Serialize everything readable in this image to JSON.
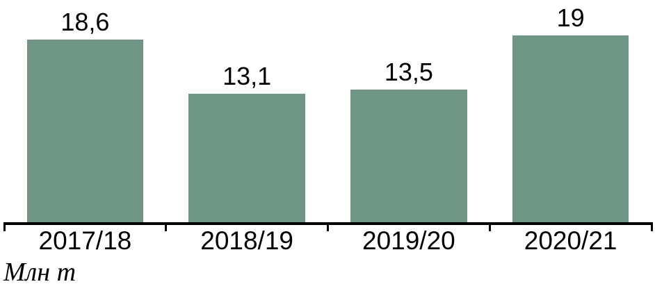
{
  "chart_data": {
    "type": "bar",
    "title": "",
    "xlabel": "",
    "ylabel": "",
    "unit_label": "Млн т",
    "categories": [
      "2017/18",
      "2018/19",
      "2019/20",
      "2020/21"
    ],
    "values": [
      18.6,
      13.1,
      13.5,
      19
    ],
    "value_labels": [
      "18,6",
      "13,1",
      "13,5",
      "19"
    ],
    "ylim": [
      0,
      22.63
    ],
    "grid": false,
    "legend_position": "none",
    "bar_color": "#6f9585",
    "axis_color": "#000000",
    "text_color": "#000000",
    "background_color": "#ffffff"
  }
}
